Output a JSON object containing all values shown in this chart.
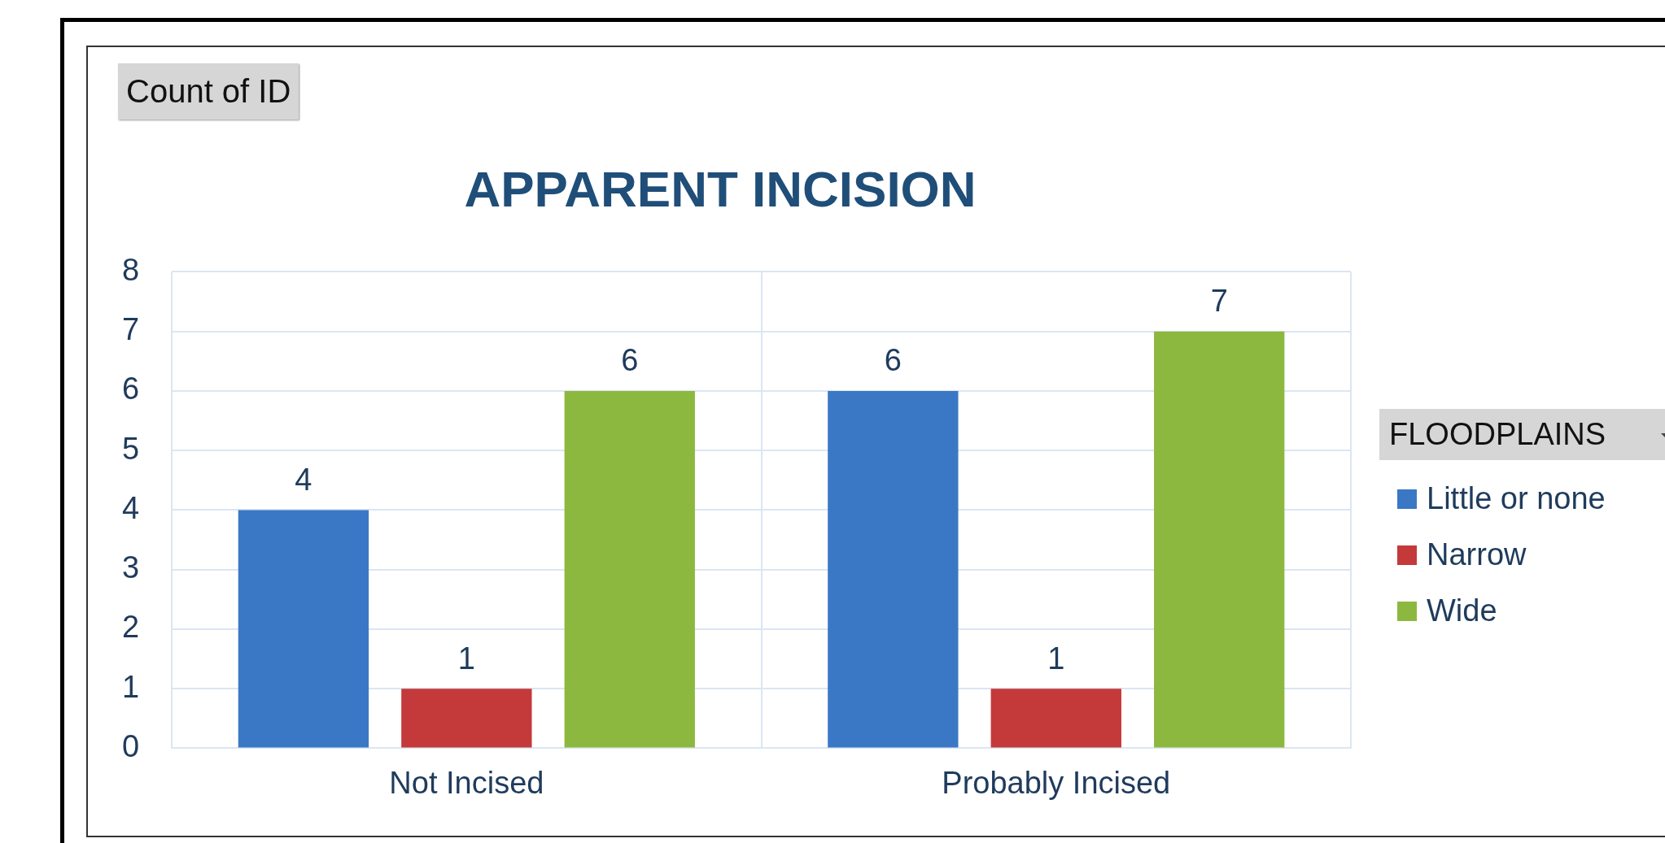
{
  "chart_data": {
    "type": "bar",
    "title": "APPARENT INCISION",
    "categories": [
      "Not Incised",
      "Probably Incised"
    ],
    "series": [
      {
        "name": "Little or none",
        "color": "#3a78c6",
        "values": [
          4,
          6
        ]
      },
      {
        "name": "Narrow",
        "color": "#c43a3a",
        "values": [
          1,
          1
        ]
      },
      {
        "name": "Wide",
        "color": "#8db83f",
        "values": [
          6,
          7
        ]
      }
    ],
    "ylim": [
      0,
      8
    ],
    "yticks": [
      0,
      1,
      2,
      3,
      4,
      5,
      6,
      7,
      8
    ],
    "grid": true,
    "data_labels": true,
    "legend": "right",
    "legend_title": "FLOODPLAINS",
    "annotations": [
      "Count of ID"
    ]
  }
}
